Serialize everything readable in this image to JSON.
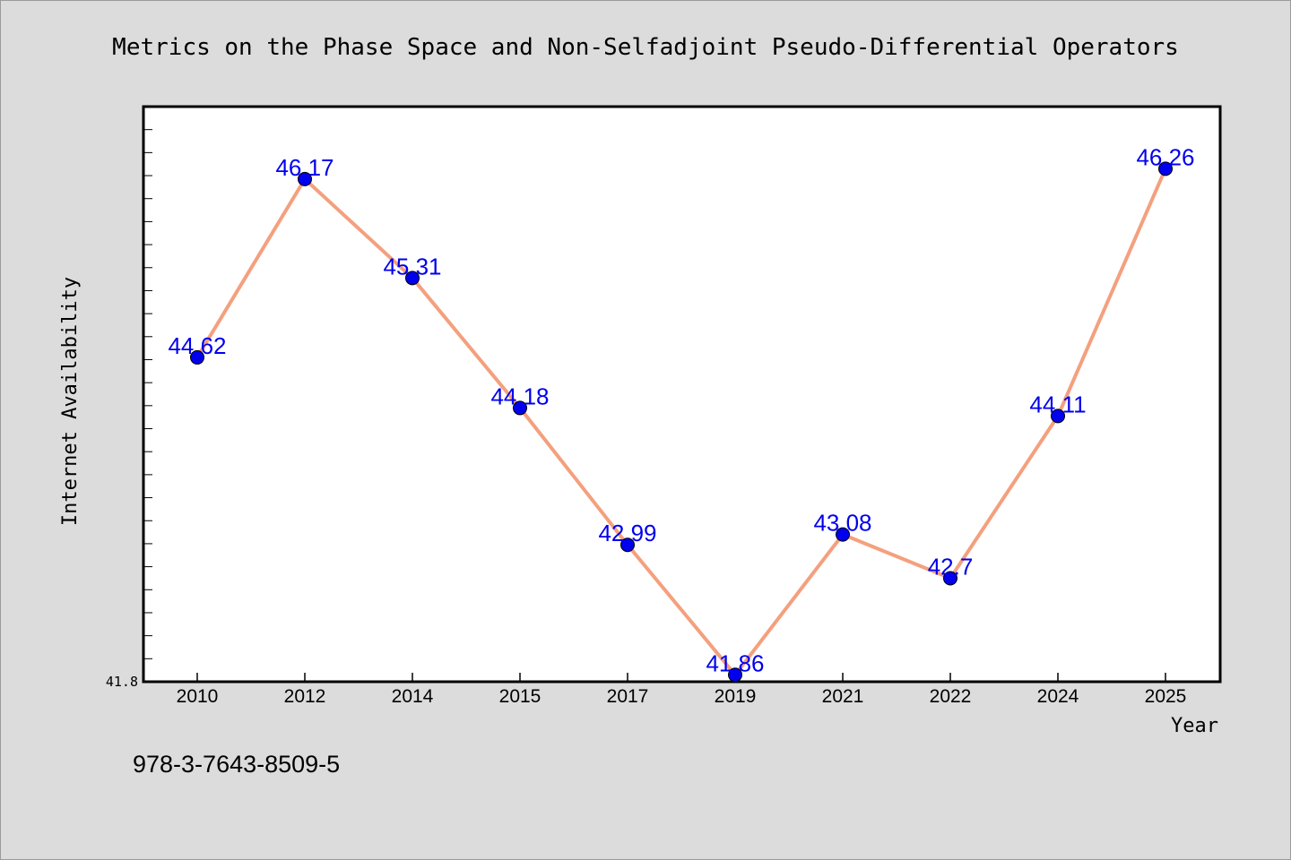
{
  "footer": {
    "code": "978-3-7643-8509-5"
  },
  "chart_data": {
    "type": "line",
    "title": "Metrics on the Phase Space and Non-Selfadjoint Pseudo-Differential Operators",
    "xlabel": "Year",
    "ylabel": "Internet Availability",
    "categories": [
      "2010",
      "2012",
      "2014",
      "2015",
      "2017",
      "2019",
      "2021",
      "2022",
      "2024",
      "2025"
    ],
    "series": [
      {
        "values": [
          44.62,
          46.17,
          45.31,
          44.18,
          42.99,
          41.86,
          43.08,
          42.7,
          44.11,
          46.26
        ],
        "data_labels": [
          "44.62",
          "46.17",
          "45.31",
          "44.18",
          "42.99",
          "41.86",
          "43.08",
          "42.7",
          "44.11",
          "46.26"
        ],
        "line_color": "#f4a07e",
        "marker_color": "#0000ee",
        "label_color": "#0000ee"
      }
    ],
    "ylim": [
      41.8,
      46.8
    ],
    "ytick_labels": [
      "41.8"
    ],
    "grid": false,
    "legend": "none"
  }
}
